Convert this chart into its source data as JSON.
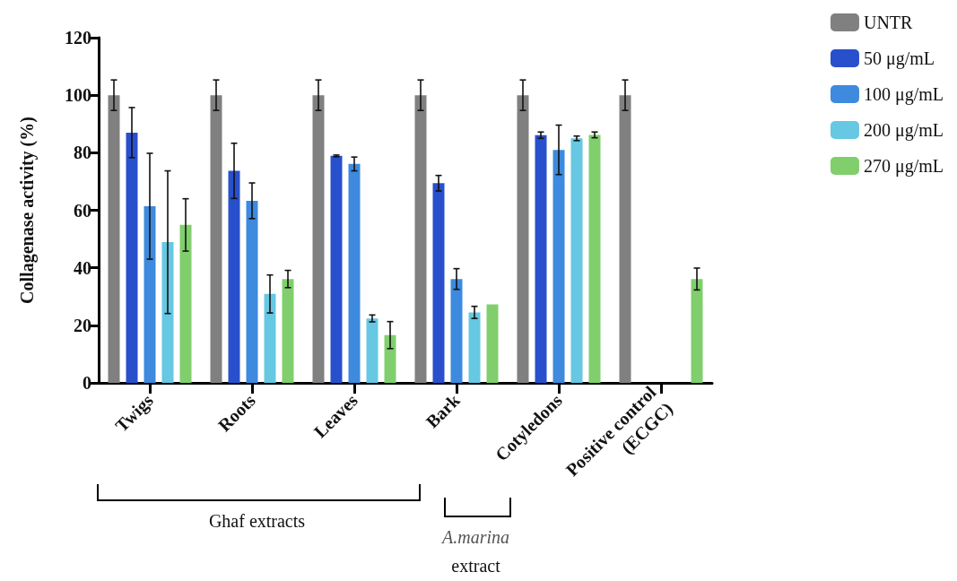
{
  "chart_data": {
    "type": "bar",
    "ylabel": "Collagenase activity (%)",
    "categories": [
      "Twigs",
      "Roots",
      "Leaves",
      "Bark",
      "Cotyledons",
      "Positive control\n(ECGC)"
    ],
    "ylim": [
      0,
      120
    ],
    "yticks": [
      0,
      20,
      40,
      60,
      80,
      100,
      120
    ],
    "grid": false,
    "legend": "top right",
    "series": [
      {
        "name": "UNTR",
        "color": "#808080",
        "values": [
          100,
          100,
          100,
          100,
          100,
          100
        ],
        "errors": [
          5.3,
          5.3,
          5.3,
          5.3,
          5.3,
          5.3
        ]
      },
      {
        "name": "50 μg/mL",
        "color": "#2850cc",
        "values": [
          87,
          73.7,
          78.9,
          69.4,
          86.1,
          null
        ],
        "errors": [
          8.7,
          9.6,
          0.3,
          2.7,
          1.1,
          null
        ]
      },
      {
        "name": "100 μg/mL",
        "color": "#3d8adf",
        "values": [
          61.4,
          63.3,
          76.1,
          36.1,
          81,
          null
        ],
        "errors": [
          18.4,
          6.2,
          2.4,
          3.6,
          8.6,
          null
        ]
      },
      {
        "name": "200 μg/mL",
        "color": "#66c8e2",
        "values": [
          48.9,
          30.9,
          22.4,
          24.5,
          85,
          null
        ],
        "errors": [
          24.8,
          6.6,
          1.2,
          2.1,
          0.8,
          null
        ]
      },
      {
        "name": "270 μg/mL",
        "color": "#80cf6c",
        "values": [
          54.9,
          36.1,
          16.6,
          27.3,
          86.2,
          36.1
        ],
        "errors": [
          9.1,
          3,
          4.7,
          null,
          1,
          3.8
        ]
      }
    ],
    "annotations": [
      "Ghaf extracts",
      "A.marina extract"
    ]
  }
}
